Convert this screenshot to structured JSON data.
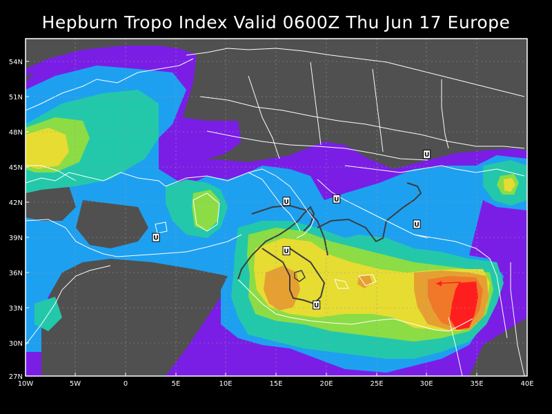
{
  "title": "Hepburn Tropo Index Valid 0600Z Thu Jun 17 Europe",
  "map": {
    "region": "Europe",
    "lat_range": [
      27,
      55
    ],
    "lon_range": [
      -10,
      40
    ],
    "grid": true,
    "colors": {
      "land": "#505050",
      "sea": "#505050",
      "coast": "#ffffff",
      "level1": "#7a1ee6",
      "level2": "#1ea0f0",
      "level3": "#23c8aa",
      "level4": "#8cdc46",
      "level5": "#e6dc32",
      "level6": "#e6a032",
      "level7": "#f07828",
      "level8": "#ff1e1e",
      "contour": "#3c3c3c"
    },
    "lat_labels": [
      "54N",
      "51N",
      "48N",
      "45N",
      "42N",
      "39N",
      "36N",
      "33N",
      "30N",
      "27N"
    ],
    "lon_labels": [
      "10W",
      "5W",
      "0",
      "5E",
      "10E",
      "15E",
      "20E",
      "25E",
      "30E",
      "35E",
      "40E"
    ],
    "markers": [
      {
        "label": "U",
        "lon": 16.0,
        "lat": 41.5
      },
      {
        "label": "U",
        "lon": 21.0,
        "lat": 41.7
      },
      {
        "label": "U",
        "lon": 30.0,
        "lat": 45.4
      },
      {
        "label": "U",
        "lon": 29.0,
        "lat": 39.6
      },
      {
        "label": "U",
        "lon": 3.0,
        "lat": 38.5
      },
      {
        "label": "U",
        "lon": 16.0,
        "lat": 37.4
      },
      {
        "label": "U",
        "lon": 19.0,
        "lat": 32.9
      }
    ]
  }
}
